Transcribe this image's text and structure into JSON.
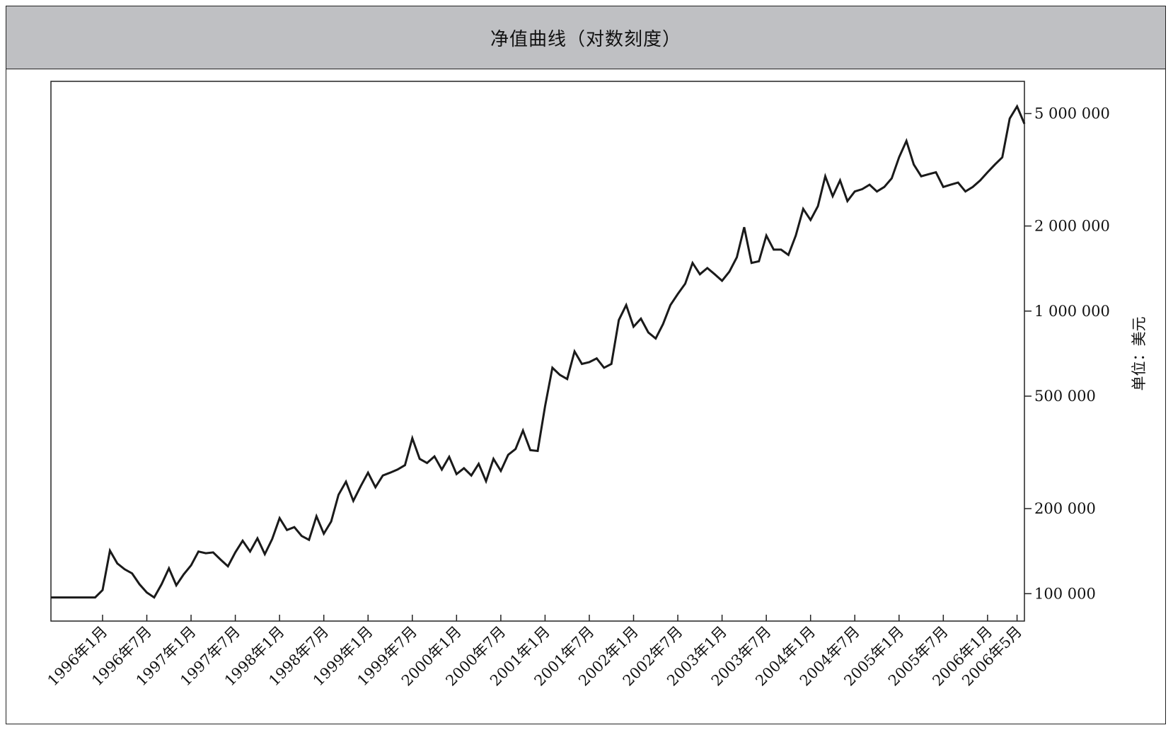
{
  "chart_data": {
    "type": "line",
    "title": "净值曲线（对数刻度）",
    "ylabel": "单位：美元",
    "xlabel": "",
    "yscale": "log",
    "ylim": [
      80000,
      6500000
    ],
    "yticks": [
      100000,
      200000,
      500000,
      1000000,
      2000000,
      5000000
    ],
    "ytick_labels": [
      "100 000",
      "200 000",
      "500 000",
      "1 000 000",
      "2 000 000",
      "5 000 000"
    ],
    "x_tick_labels": [
      "1996年1月",
      "1996年7月",
      "1997年1月",
      "1997年7月",
      "1998年1月",
      "1998年7月",
      "1999年1月",
      "1999年7月",
      "2000年1月",
      "2000年7月",
      "2001年1月",
      "2001年7月",
      "2002年1月",
      "2002年7月",
      "2003年1月",
      "2003年7月",
      "2004年1月",
      "2004年7月",
      "2005年1月",
      "2005年7月",
      "2006年1月",
      "2006年5月"
    ],
    "x_tick_dates": [
      "1996-01",
      "1996-07",
      "1997-01",
      "1997-07",
      "1998-01",
      "1998-07",
      "1999-01",
      "1999-07",
      "2000-01",
      "2000-07",
      "2001-01",
      "2001-07",
      "2002-01",
      "2002-07",
      "2003-01",
      "2003-07",
      "2004-01",
      "2004-07",
      "2005-01",
      "2005-07",
      "2006-01",
      "2006-05"
    ],
    "xlim": [
      "1995-06",
      "2006-06"
    ],
    "grid": false,
    "series": [
      {
        "color": "#1a1a1a",
        "points": [
          [
            "1995-06",
            97000
          ],
          [
            "1995-09",
            97000
          ],
          [
            "1995-12",
            97000
          ],
          [
            "1996-01",
            103000
          ],
          [
            "1996-02",
            142000
          ],
          [
            "1996-03",
            128000
          ],
          [
            "1996-04",
            122000
          ],
          [
            "1996-05",
            118000
          ],
          [
            "1996-06",
            108000
          ],
          [
            "1996-07",
            101000
          ],
          [
            "1996-08",
            97000
          ],
          [
            "1996-09",
            108000
          ],
          [
            "1996-10",
            123000
          ],
          [
            "1996-11",
            107000
          ],
          [
            "1996-12",
            117000
          ],
          [
            "1997-01",
            126000
          ],
          [
            "1997-02",
            141000
          ],
          [
            "1997-03",
            139000
          ],
          [
            "1997-04",
            140000
          ],
          [
            "1997-05",
            132000
          ],
          [
            "1997-06",
            125000
          ],
          [
            "1997-07",
            140000
          ],
          [
            "1997-08",
            154000
          ],
          [
            "1997-09",
            141000
          ],
          [
            "1997-10",
            157000
          ],
          [
            "1997-11",
            138000
          ],
          [
            "1997-12",
            156000
          ],
          [
            "1998-01",
            185000
          ],
          [
            "1998-02",
            168000
          ],
          [
            "1998-03",
            172000
          ],
          [
            "1998-04",
            160000
          ],
          [
            "1998-05",
            155000
          ],
          [
            "1998-06",
            188000
          ],
          [
            "1998-07",
            163000
          ],
          [
            "1998-08",
            180000
          ],
          [
            "1998-09",
            224000
          ],
          [
            "1998-10",
            249000
          ],
          [
            "1998-11",
            213000
          ],
          [
            "1998-12",
            240000
          ],
          [
            "1999-01",
            268000
          ],
          [
            "1999-02",
            238000
          ],
          [
            "1999-03",
            262000
          ],
          [
            "1999-04",
            268000
          ],
          [
            "1999-05",
            275000
          ],
          [
            "1999-06",
            285000
          ],
          [
            "1999-07",
            355000
          ],
          [
            "1999-08",
            300000
          ],
          [
            "1999-09",
            290000
          ],
          [
            "1999-10",
            306000
          ],
          [
            "1999-11",
            275000
          ],
          [
            "1999-12",
            305000
          ],
          [
            "2000-01",
            265000
          ],
          [
            "2000-02",
            278000
          ],
          [
            "2000-03",
            262000
          ],
          [
            "2000-04",
            288000
          ],
          [
            "2000-05",
            250000
          ],
          [
            "2000-06",
            300000
          ],
          [
            "2000-07",
            272000
          ],
          [
            "2000-08",
            310000
          ],
          [
            "2000-09",
            325000
          ],
          [
            "2000-10",
            378000
          ],
          [
            "2000-11",
            322000
          ],
          [
            "2000-12",
            320000
          ],
          [
            "2001-01",
            460000
          ],
          [
            "2001-02",
            630000
          ],
          [
            "2001-03",
            595000
          ],
          [
            "2001-04",
            575000
          ],
          [
            "2001-05",
            720000
          ],
          [
            "2001-06",
            650000
          ],
          [
            "2001-07",
            660000
          ],
          [
            "2001-08",
            680000
          ],
          [
            "2001-09",
            630000
          ],
          [
            "2001-10",
            650000
          ],
          [
            "2001-11",
            930000
          ],
          [
            "2001-12",
            1050000
          ],
          [
            "2002-01",
            880000
          ],
          [
            "2002-02",
            940000
          ],
          [
            "2002-03",
            840000
          ],
          [
            "2002-04",
            800000
          ],
          [
            "2002-05",
            900000
          ],
          [
            "2002-06",
            1050000
          ],
          [
            "2002-07",
            1150000
          ],
          [
            "2002-08",
            1250000
          ],
          [
            "2002-09",
            1480000
          ],
          [
            "2002-10",
            1350000
          ],
          [
            "2002-11",
            1420000
          ],
          [
            "2002-12",
            1350000
          ],
          [
            "2003-01",
            1280000
          ],
          [
            "2003-02",
            1380000
          ],
          [
            "2003-03",
            1550000
          ],
          [
            "2003-04",
            1980000
          ],
          [
            "2003-05",
            1480000
          ],
          [
            "2003-06",
            1500000
          ],
          [
            "2003-07",
            1850000
          ],
          [
            "2003-08",
            1650000
          ],
          [
            "2003-09",
            1650000
          ],
          [
            "2003-10",
            1580000
          ],
          [
            "2003-11",
            1850000
          ],
          [
            "2003-12",
            2300000
          ],
          [
            "2004-01",
            2100000
          ],
          [
            "2004-02",
            2350000
          ],
          [
            "2004-03",
            3000000
          ],
          [
            "2004-04",
            2550000
          ],
          [
            "2004-05",
            2900000
          ],
          [
            "2004-06",
            2450000
          ],
          [
            "2004-07",
            2650000
          ],
          [
            "2004-08",
            2700000
          ],
          [
            "2004-09",
            2800000
          ],
          [
            "2004-10",
            2650000
          ],
          [
            "2004-11",
            2750000
          ],
          [
            "2004-12",
            2950000
          ],
          [
            "2005-01",
            3500000
          ],
          [
            "2005-02",
            4000000
          ],
          [
            "2005-03",
            3300000
          ],
          [
            "2005-04",
            3000000
          ],
          [
            "2005-05",
            3050000
          ],
          [
            "2005-06",
            3100000
          ],
          [
            "2005-07",
            2750000
          ],
          [
            "2005-08",
            2800000
          ],
          [
            "2005-09",
            2850000
          ],
          [
            "2005-10",
            2650000
          ],
          [
            "2005-11",
            2750000
          ],
          [
            "2005-12",
            2900000
          ],
          [
            "2006-01",
            3100000
          ],
          [
            "2006-02",
            3300000
          ],
          [
            "2006-03",
            3500000
          ],
          [
            "2006-04",
            4800000
          ],
          [
            "2006-05",
            5300000
          ],
          [
            "2006-06",
            4600000
          ]
        ]
      }
    ]
  }
}
